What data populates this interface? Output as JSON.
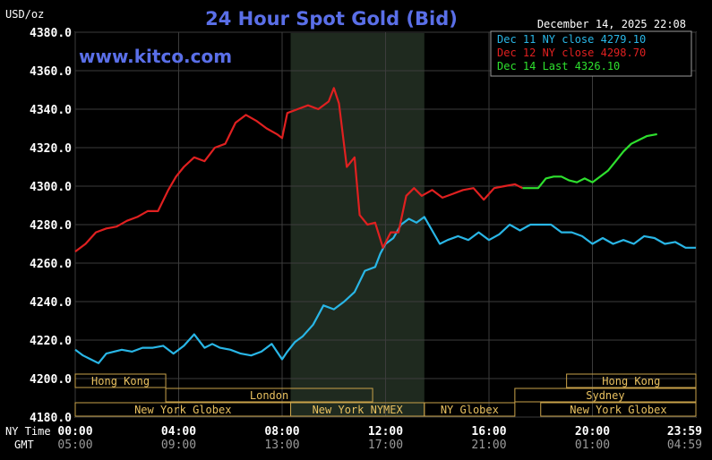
{
  "chart_data": {
    "type": "line",
    "title": "24 Hour Spot Gold (Bid)",
    "site": "www.kitco.com",
    "ylabel": "USD/oz",
    "timestamp": "December 14, 2025 22:08",
    "ylim": [
      4180,
      4380
    ],
    "y_ticks": [
      "4180.0",
      "4200.0",
      "4220.0",
      "4240.0",
      "4260.0",
      "4280.0",
      "4300.0",
      "4320.0",
      "4340.0",
      "4360.0",
      "4380.0"
    ],
    "x_row_labels": {
      "ny": "NY Time",
      "gmt": "GMT"
    },
    "x_ticks_ny": [
      "00:00",
      "04:00",
      "08:00",
      "12:00",
      "16:00",
      "20:00",
      "23:59"
    ],
    "x_ticks_gmt": [
      "05:00",
      "09:00",
      "13:00",
      "17:00",
      "21:00",
      "01:00",
      "04:59"
    ],
    "x_tick_hours": [
      0,
      4,
      8,
      12,
      16,
      20,
      24
    ],
    "xlim": [
      0,
      24
    ],
    "shaded_hours": [
      8.33,
      13.5
    ],
    "legend": [
      {
        "text": "Dec 11 NY close 4279.10",
        "color": "#29b6e6"
      },
      {
        "text": "Dec 12 NY close 4298.70",
        "color": "#e02020"
      },
      {
        "text": "Dec 14 Last 4326.10",
        "color": "#2ee02e"
      }
    ],
    "series": [
      {
        "name": "Dec 11",
        "color": "#29b6e6",
        "x": [
          0,
          0.3,
          0.6,
          0.9,
          1.2,
          1.5,
          1.8,
          2.2,
          2.6,
          3.0,
          3.4,
          3.8,
          4.2,
          4.6,
          5.0,
          5.3,
          5.6,
          6.0,
          6.4,
          6.8,
          7.2,
          7.6,
          8.0,
          8.2,
          8.5,
          8.8,
          9.2,
          9.6,
          10.0,
          10.4,
          10.8,
          11.2,
          11.6,
          11.8,
          12.0,
          12.3,
          12.6,
          12.9,
          13.2,
          13.5,
          13.8,
          14.1,
          14.4,
          14.8,
          15.2,
          15.6,
          16.0,
          16.4,
          16.8,
          17.2,
          17.6,
          18.0,
          18.4,
          18.8,
          19.2,
          19.6,
          20.0,
          20.4,
          20.8,
          21.2,
          21.6,
          22.0,
          22.4,
          22.8,
          23.2,
          23.6,
          24.0
        ],
        "values": [
          4215,
          4212,
          4210,
          4208,
          4213,
          4214,
          4215,
          4214,
          4216,
          4216,
          4217,
          4213,
          4217,
          4223,
          4216,
          4218,
          4216,
          4215,
          4213,
          4212,
          4214,
          4218,
          4210,
          4214,
          4219,
          4222,
          4228,
          4238,
          4236,
          4240,
          4245,
          4256,
          4258,
          4265,
          4270,
          4273,
          4280,
          4283,
          4281,
          4284,
          4277,
          4270,
          4272,
          4274,
          4272,
          4276,
          4272,
          4275,
          4280,
          4277,
          4280,
          4280,
          4280,
          4276,
          4276,
          4274,
          4270,
          4273,
          4270,
          4272,
          4270,
          4274,
          4273,
          4270,
          4271,
          4268,
          4268
        ]
      },
      {
        "name": "Dec 12",
        "color": "#e02020",
        "x": [
          0,
          0.4,
          0.8,
          1.2,
          1.6,
          2.0,
          2.4,
          2.8,
          3.2,
          3.6,
          3.9,
          4.2,
          4.6,
          5.0,
          5.4,
          5.8,
          6.2,
          6.6,
          7.0,
          7.4,
          7.8,
          8.0,
          8.2,
          8.6,
          9.0,
          9.4,
          9.8,
          10.0,
          10.2,
          10.5,
          10.8,
          11.0,
          11.3,
          11.6,
          11.9,
          12.2,
          12.5,
          12.8,
          13.1,
          13.4,
          13.8,
          14.2,
          14.6,
          15.0,
          15.4,
          15.8,
          16.2,
          16.6,
          17.0,
          17.3
        ],
        "values": [
          4266,
          4270,
          4276,
          4278,
          4279,
          4282,
          4284,
          4287,
          4287,
          4298,
          4305,
          4310,
          4315,
          4313,
          4320,
          4322,
          4333,
          4337,
          4334,
          4330,
          4327,
          4325,
          4338,
          4340,
          4342,
          4340,
          4344,
          4351,
          4343,
          4310,
          4315,
          4285,
          4280,
          4281,
          4268,
          4276,
          4276,
          4295,
          4299,
          4295,
          4298,
          4294,
          4296,
          4298,
          4299,
          4293,
          4299,
          4300,
          4301,
          4299
        ]
      },
      {
        "name": "Dec 14",
        "color": "#2ee02e",
        "x": [
          17.3,
          17.6,
          17.9,
          18.2,
          18.5,
          18.8,
          19.1,
          19.4,
          19.7,
          20.0,
          20.3,
          20.6,
          20.9,
          21.2,
          21.5,
          21.8,
          22.1,
          22.5
        ],
        "values": [
          4299,
          4299,
          4299,
          4304,
          4305,
          4305,
          4303,
          4302,
          4304,
          4302,
          4305,
          4308,
          4313,
          4318,
          4322,
          4324,
          4326,
          4327
        ]
      }
    ],
    "sessions": [
      {
        "label": "Hong Kong",
        "row": 0,
        "start": 0,
        "end": 3.5
      },
      {
        "label": "London",
        "row": 1,
        "start": 3.5,
        "end": 11.5
      },
      {
        "label": "New York Globex",
        "row": 2,
        "start": 0,
        "end": 8.33
      },
      {
        "label": "New York NYMEX",
        "row": 2,
        "start": 8.33,
        "end": 13.5
      },
      {
        "label": "NY Globex",
        "row": 2,
        "start": 13.5,
        "end": 17.0
      },
      {
        "label": "Hong Kong",
        "row": 0,
        "start": 19.0,
        "end": 24
      },
      {
        "label": "Sydney",
        "row": 1,
        "start": 17.0,
        "end": 24
      },
      {
        "label": "New York Globex",
        "row": 2,
        "start": 18.0,
        "end": 24
      }
    ]
  }
}
